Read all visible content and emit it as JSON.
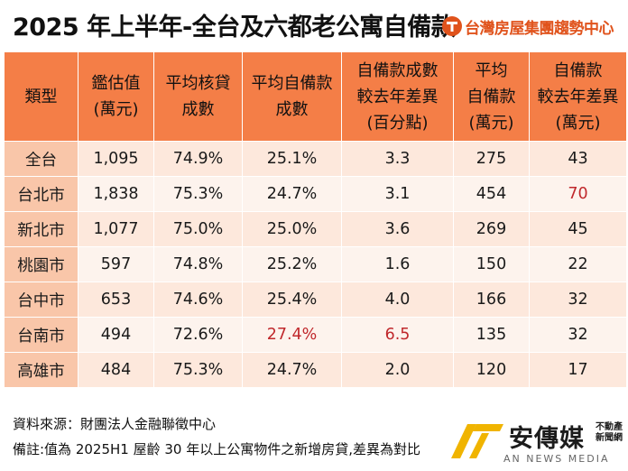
{
  "title": "2025 年上半年-全台及六都老公寓自備款",
  "brand": {
    "name": "台灣房屋集團趨勢中心",
    "logo_icon": "taiwan-realty-logo-icon",
    "color": "#e0531c"
  },
  "table": {
    "headers": [
      [
        "類型"
      ],
      [
        "鑑估值",
        "(萬元)"
      ],
      [
        "平均核貸",
        "成數"
      ],
      [
        "平均自備款",
        "成數"
      ],
      [
        "自備款成數",
        "較去年差異",
        "(百分點)"
      ],
      [
        "平均",
        "自備款",
        "(萬元)"
      ],
      [
        "自備款",
        "較去年差異",
        "(萬元)"
      ]
    ],
    "rows": [
      [
        "全台",
        "1,095",
        "74.9%",
        "25.1%",
        "3.3",
        "275",
        "43"
      ],
      [
        "台北市",
        "1,838",
        "75.3%",
        "24.7%",
        "3.1",
        "454",
        "70"
      ],
      [
        "新北市",
        "1,077",
        "75.0%",
        "25.0%",
        "3.6",
        "269",
        "45"
      ],
      [
        "桃園市",
        "597",
        "74.8%",
        "25.2%",
        "1.6",
        "150",
        "22"
      ],
      [
        "台中市",
        "653",
        "74.6%",
        "25.4%",
        "4.0",
        "166",
        "32"
      ],
      [
        "台南市",
        "494",
        "72.6%",
        "27.4%",
        "6.5",
        "135",
        "32"
      ],
      [
        "高雄市",
        "484",
        "75.3%",
        "24.7%",
        "2.0",
        "120",
        "17"
      ]
    ],
    "highlight_color": "#c0282c",
    "header_color": "#f47e47",
    "category_color": "#f9c6a9",
    "cell_color": "#fde8dc"
  },
  "footer": {
    "source": "資料來源：財團法人金融聯徵中心",
    "note": "備註:值為 2025H1 屋齡 30 年以上公寓物件之新增房貸,差異為對比"
  },
  "watermark": {
    "name": "安傳媒",
    "tagline": "不動產新聞網",
    "english": "AN NEWS MEDIA",
    "logo_icon": "an-media-logo-icon"
  }
}
